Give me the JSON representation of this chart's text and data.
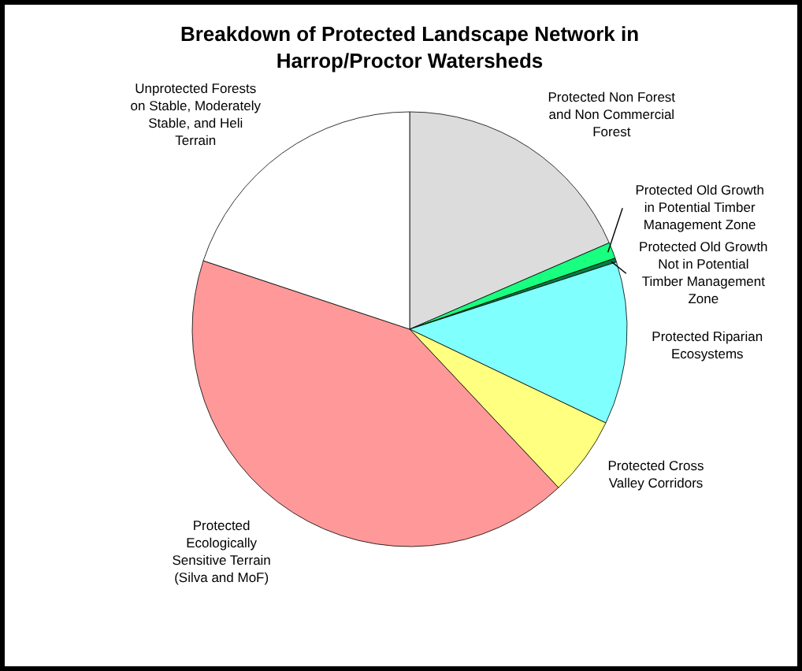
{
  "chart_data": {
    "type": "pie",
    "title": "Breakdown of Protected Landscape Network in Harrop/Proctor Watersheds",
    "categories": [
      "Protected Non Forest and Non Commercial Forest",
      "Protected Old Growth in Potential Timber Management Zone",
      "Protected Old Growth Not in Potential Timber Management Zone",
      "Protected Riparian Ecosystems",
      "Protected Cross Valley Corridors",
      "Protected Ecologically Sensitive Terrain (Silva and MoF)",
      "Unprotected Forests on Stable, Moderately Stable, and Heli Terrain"
    ],
    "values": [
      18.5,
      1.2,
      0.3,
      12.1,
      5.9,
      42.1,
      19.9
    ],
    "colors": [
      "#dcdcdc",
      "#19ff80",
      "#008040",
      "#80ffff",
      "#ffff80",
      "#ff9999",
      "#ffffff"
    ],
    "legend": false
  }
}
